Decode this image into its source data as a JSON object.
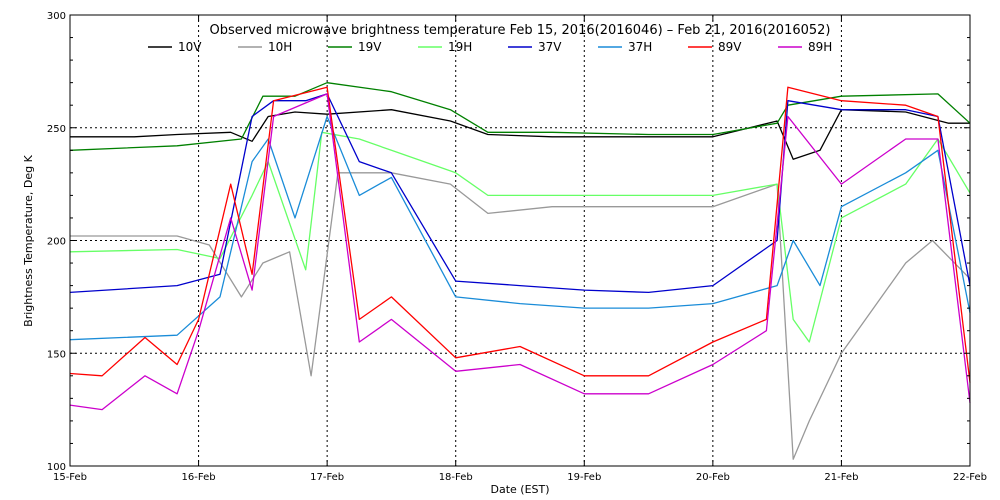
{
  "chart_data": {
    "type": "line",
    "title": "Observed microwave brightness temperature Feb 15, 2016(2016046) – Feb 21, 2016(2016052)",
    "xlabel": "Date (EST)",
    "ylabel": "Brightness Temperature, Deg K",
    "xlim": [
      "2016-02-15",
      "2016-02-22"
    ],
    "ylim": [
      100,
      300
    ],
    "x_ticks": [
      "15-Feb",
      "16-Feb",
      "17-Feb",
      "18-Feb",
      "19-Feb",
      "20-Feb",
      "21-Feb",
      "22-Feb"
    ],
    "y_ticks": [
      100,
      150,
      200,
      250,
      300
    ],
    "grid": true,
    "legend": "top",
    "series": [
      {
        "name": "10V",
        "color": "#000000",
        "x": [
          "2016-02-15T00:00",
          "2016-02-15T12:00",
          "2016-02-15T20:00",
          "2016-02-16T06:00",
          "2016-02-16T10:00",
          "2016-02-16T13:00",
          "2016-02-16T18:00",
          "2016-02-17T00:00",
          "2016-02-17T12:00",
          "2016-02-17T23:00",
          "2016-02-18T06:00",
          "2016-02-18T18:00",
          "2016-02-19T12:00",
          "2016-02-20T00:00",
          "2016-02-20T12:00",
          "2016-02-20T15:00",
          "2016-02-20T20:00",
          "2016-02-21T00:00",
          "2016-02-21T12:00",
          "2016-02-21T20:00",
          "2016-02-22T00:00"
        ],
        "values": [
          246,
          246,
          247,
          248,
          244,
          255,
          257,
          256,
          258,
          253,
          247,
          246,
          246,
          246,
          253,
          236,
          240,
          258,
          257,
          252,
          252
        ]
      },
      {
        "name": "10H",
        "color": "#999999",
        "x": [
          "2016-02-15T00:00",
          "2016-02-15T20:00",
          "2016-02-16T02:00",
          "2016-02-16T08:00",
          "2016-02-16T12:00",
          "2016-02-16T17:00",
          "2016-02-16T21:00",
          "2016-02-17T02:00",
          "2016-02-17T12:00",
          "2016-02-17T23:00",
          "2016-02-18T06:00",
          "2016-02-18T18:00",
          "2016-02-19T12:00",
          "2016-02-20T00:00",
          "2016-02-20T12:00",
          "2016-02-20T15:00",
          "2016-02-20T18:00",
          "2016-02-21T00:00",
          "2016-02-21T12:00",
          "2016-02-21T17:00",
          "2016-02-22T00:00"
        ],
        "values": [
          202,
          202,
          198,
          175,
          190,
          195,
          140,
          230,
          230,
          225,
          212,
          215,
          215,
          215,
          225,
          103,
          120,
          150,
          190,
          200,
          183
        ]
      },
      {
        "name": "19V",
        "color": "#008000",
        "x": [
          "2016-02-15T00:00",
          "2016-02-15T20:00",
          "2016-02-16T08:00",
          "2016-02-16T12:00",
          "2016-02-16T18:00",
          "2016-02-17T00:00",
          "2016-02-17T12:00",
          "2016-02-17T23:00",
          "2016-02-18T06:00",
          "2016-02-18T18:00",
          "2016-02-19T12:00",
          "2016-02-20T00:00",
          "2016-02-20T12:00",
          "2016-02-20T14:00",
          "2016-02-21T00:00",
          "2016-02-21T18:00",
          "2016-02-22T00:00"
        ],
        "values": [
          240,
          242,
          245,
          264,
          264,
          270,
          266,
          258,
          248,
          248,
          247,
          247,
          252,
          260,
          264,
          265,
          252
        ]
      },
      {
        "name": "19H",
        "color": "#66ff66",
        "x": [
          "2016-02-15T00:00",
          "2016-02-15T20:00",
          "2016-02-16T04:00",
          "2016-02-16T10:00",
          "2016-02-16T13:00",
          "2016-02-16T20:00",
          "2016-02-16T23:00",
          "2016-02-17T06:00",
          "2016-02-17T12:00",
          "2016-02-18T00:00",
          "2016-02-18T06:00",
          "2016-02-18T18:00",
          "2016-02-19T12:00",
          "2016-02-20T00:00",
          "2016-02-20T12:00",
          "2016-02-20T15:00",
          "2016-02-20T18:00",
          "2016-02-21T00:00",
          "2016-02-21T12:00",
          "2016-02-21T18:00",
          "2016-02-22T00:00"
        ],
        "values": [
          195,
          196,
          192,
          220,
          235,
          187,
          248,
          245,
          240,
          230,
          220,
          220,
          220,
          220,
          225,
          165,
          155,
          210,
          225,
          245,
          221
        ]
      },
      {
        "name": "37V",
        "color": "#0000cc",
        "x": [
          "2016-02-15T00:00",
          "2016-02-15T20:00",
          "2016-02-16T04:00",
          "2016-02-16T10:00",
          "2016-02-16T14:00",
          "2016-02-16T20:00",
          "2016-02-17T00:00",
          "2016-02-17T06:00",
          "2016-02-17T12:00",
          "2016-02-18T00:00",
          "2016-02-18T12:00",
          "2016-02-19T00:00",
          "2016-02-19T12:00",
          "2016-02-20T00:00",
          "2016-02-20T12:00",
          "2016-02-20T14:00",
          "2016-02-21T00:00",
          "2016-02-21T12:00",
          "2016-02-21T18:00",
          "2016-02-22T00:00"
        ],
        "values": [
          177,
          180,
          185,
          255,
          262,
          262,
          265,
          235,
          230,
          182,
          180,
          178,
          177,
          180,
          200,
          262,
          258,
          258,
          255,
          180
        ]
      },
      {
        "name": "37H",
        "color": "#1a8cd8",
        "x": [
          "2016-02-15T00:00",
          "2016-02-15T20:00",
          "2016-02-16T04:00",
          "2016-02-16T10:00",
          "2016-02-16T13:00",
          "2016-02-16T18:00",
          "2016-02-17T00:00",
          "2016-02-17T06:00",
          "2016-02-17T12:00",
          "2016-02-18T00:00",
          "2016-02-18T12:00",
          "2016-02-19T00:00",
          "2016-02-19T12:00",
          "2016-02-20T00:00",
          "2016-02-20T12:00",
          "2016-02-20T15:00",
          "2016-02-20T20:00",
          "2016-02-21T00:00",
          "2016-02-21T12:00",
          "2016-02-21T18:00",
          "2016-02-22T00:00"
        ],
        "values": [
          156,
          158,
          175,
          235,
          245,
          210,
          255,
          220,
          228,
          175,
          172,
          170,
          170,
          172,
          180,
          200,
          180,
          215,
          230,
          240,
          168
        ]
      },
      {
        "name": "89V",
        "color": "#ff0000",
        "x": [
          "2016-02-15T00:00",
          "2016-02-15T06:00",
          "2016-02-15T14:00",
          "2016-02-15T20:00",
          "2016-02-16T00:00",
          "2016-02-16T06:00",
          "2016-02-16T10:00",
          "2016-02-16T14:00",
          "2016-02-17T00:00",
          "2016-02-17T06:00",
          "2016-02-17T12:00",
          "2016-02-18T00:00",
          "2016-02-18T12:00",
          "2016-02-19T00:00",
          "2016-02-19T12:00",
          "2016-02-20T00:00",
          "2016-02-20T10:00",
          "2016-02-20T14:00",
          "2016-02-21T00:00",
          "2016-02-21T12:00",
          "2016-02-21T18:00",
          "2016-02-22T00:00"
        ],
        "values": [
          141,
          140,
          157,
          145,
          165,
          225,
          185,
          262,
          268,
          165,
          175,
          148,
          153,
          140,
          140,
          155,
          165,
          268,
          262,
          260,
          255,
          137
        ]
      },
      {
        "name": "89H",
        "color": "#cc00cc",
        "x": [
          "2016-02-15T00:00",
          "2016-02-15T06:00",
          "2016-02-15T14:00",
          "2016-02-15T20:00",
          "2016-02-16T00:00",
          "2016-02-16T06:00",
          "2016-02-16T10:00",
          "2016-02-16T14:00",
          "2016-02-17T00:00",
          "2016-02-17T06:00",
          "2016-02-17T12:00",
          "2016-02-18T00:00",
          "2016-02-18T12:00",
          "2016-02-19T00:00",
          "2016-02-19T12:00",
          "2016-02-20T00:00",
          "2016-02-20T10:00",
          "2016-02-20T14:00",
          "2016-02-21T00:00",
          "2016-02-21T12:00",
          "2016-02-21T18:00",
          "2016-02-22T00:00"
        ],
        "values": [
          127,
          125,
          140,
          132,
          160,
          210,
          178,
          255,
          265,
          155,
          165,
          142,
          145,
          132,
          132,
          145,
          160,
          255,
          225,
          245,
          245,
          128
        ]
      }
    ]
  }
}
